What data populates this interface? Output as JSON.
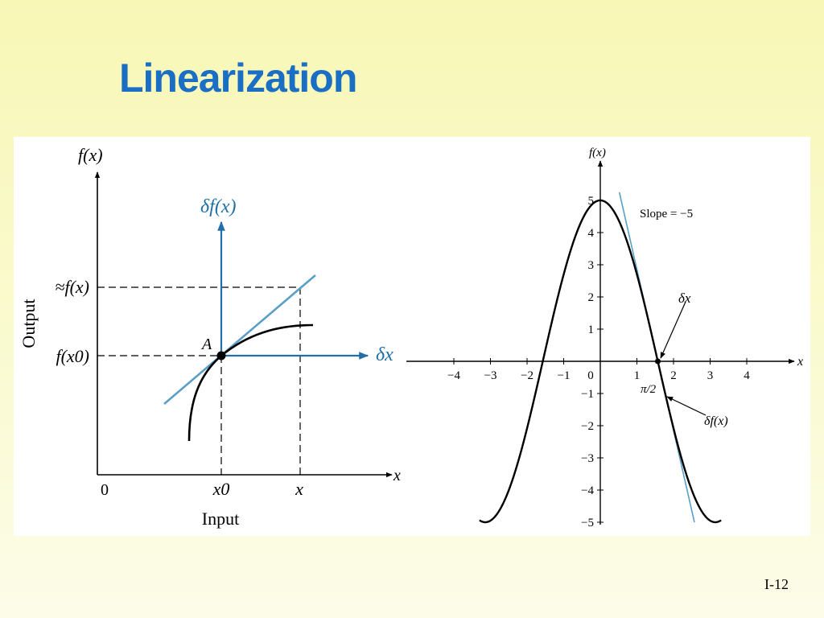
{
  "slide": {
    "title": "Linearization",
    "page_number": "I-12"
  },
  "colors": {
    "title": "#1a6fc4",
    "axis_blue": "#1f6fa8",
    "tangent_blue": "#5b9ec7",
    "curve": "#000000"
  },
  "left_diagram": {
    "y_axis_label": "f(x)",
    "x_axis_label": "x",
    "input_label": "Input",
    "output_label": "Output",
    "origin_label": "0",
    "point_label": "A",
    "y_approx_label": "≈f(x)",
    "y_f_x0_label": "f(x0)",
    "x0_label": "x0",
    "x_label": "x",
    "delta_f_label": "δf(x)",
    "delta_x_label": "δx"
  },
  "right_chart": {
    "y_axis_label": "f(x)",
    "x_axis_label": "x",
    "slope_label": "Slope = −5",
    "delta_x_label": "δx",
    "delta_f_label": "δf(x)",
    "pi_half_label": "π/2",
    "x_ticks": [
      "−4",
      "−3",
      "−2",
      "−1",
      "0",
      "1",
      "2",
      "3",
      "4"
    ],
    "y_ticks_pos": [
      "5",
      "4",
      "3",
      "2",
      "1"
    ],
    "y_ticks_neg": [
      "−1",
      "−2",
      "−3",
      "−4",
      "−5"
    ]
  },
  "chart_data": {
    "type": "line",
    "function": "5cos(x)",
    "x_ticks": [
      -4,
      -3,
      -2,
      -1,
      0,
      1,
      2,
      3,
      4
    ],
    "y_ticks": [
      -5,
      -4,
      -3,
      -2,
      -1,
      1,
      2,
      3,
      4,
      5
    ],
    "xlim": [
      -5.5,
      5.5
    ],
    "ylim": [
      -5,
      5
    ],
    "series": [
      {
        "type": "curve",
        "x": [
          -3.3,
          -3.0,
          -2.5,
          -2.0,
          -1.5708,
          -1.0,
          -0.5,
          0,
          0.5,
          1.0,
          1.5708,
          2.0,
          2.5,
          3.0,
          3.3
        ],
        "y": [
          -4.94,
          -4.95,
          -4.01,
          -2.08,
          0,
          2.7,
          4.39,
          5,
          4.39,
          2.7,
          0,
          -2.08,
          -4.01,
          -4.95,
          -4.94
        ]
      },
      {
        "type": "tangent",
        "point": [
          1.5708,
          0
        ],
        "slope": -5
      }
    ]
  }
}
